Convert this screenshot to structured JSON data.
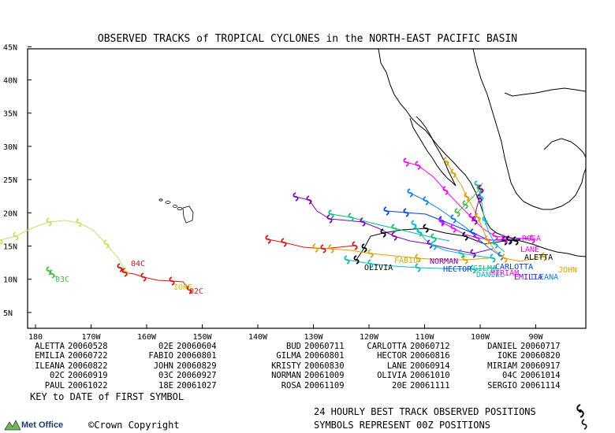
{
  "title": "OBSERVED TRACKS of TROPICAL CYCLONES in the NORTH-EAST PACIFIC BASIN",
  "axes": {
    "lat_labels": [
      "45N",
      "40N",
      "35N",
      "30N",
      "25N",
      "20N",
      "15N",
      "10N",
      "5N"
    ],
    "lon_labels": [
      "180",
      "170W",
      "160W",
      "150W",
      "140W",
      "130W",
      "120W",
      "110W",
      "100W",
      "90W"
    ]
  },
  "legend": [
    [
      {
        "name": "ALETTA",
        "date": "20060528"
      },
      {
        "name": "02E",
        "date": "20060604"
      },
      {
        "name": "BUD",
        "date": "20060711"
      },
      {
        "name": "CARLOTTA",
        "date": "20060712"
      },
      {
        "name": "DANIEL",
        "date": "20060717"
      }
    ],
    [
      {
        "name": "EMILIA",
        "date": "20060722"
      },
      {
        "name": "FABIO",
        "date": "20060801"
      },
      {
        "name": "GILMA",
        "date": "20060801"
      },
      {
        "name": "HECTOR",
        "date": "20060816"
      },
      {
        "name": "IOKE",
        "date": "20060820"
      }
    ],
    [
      {
        "name": "ILEANA",
        "date": "20060822"
      },
      {
        "name": "JOHN",
        "date": "20060829"
      },
      {
        "name": "KRISTY",
        "date": "20060830"
      },
      {
        "name": "LANE",
        "date": "20060914"
      },
      {
        "name": "MIRIAM",
        "date": "20060917"
      }
    ],
    [
      {
        "name": "02C",
        "date": "20060919"
      },
      {
        "name": "03C",
        "date": "20060927"
      },
      {
        "name": "NORMAN",
        "date": "20061009"
      },
      {
        "name": "OLIVIA",
        "date": "20061010"
      },
      {
        "name": "04C",
        "date": "20061014"
      }
    ],
    [
      {
        "name": "PAUL",
        "date": "20061022"
      },
      {
        "name": "18E",
        "date": "20061027"
      },
      {
        "name": "ROSA",
        "date": "20061109"
      },
      {
        "name": "20E",
        "date": "20061111"
      },
      {
        "name": "SERGIO",
        "date": "20061114"
      }
    ]
  ],
  "key_text": "KEY to DATE of FIRST SYMBOL",
  "best_track_text": "24 HOURLY BEST TRACK OBSERVED POSITIONS",
  "symbols_text": "SYMBOLS REPRESENT 00Z POSITIONS",
  "logo_text": "Met Office",
  "copyright_text": "Crown Copyright",
  "storm_labels": [
    {
      "text": "04C",
      "color": "#e01010"
    },
    {
      "text": "03C",
      "color": "#40c040"
    },
    {
      "text": "IOKE",
      "color": "#c8c800"
    },
    {
      "text": "02C",
      "color": "#e01010"
    },
    {
      "text": "OLIVIA",
      "color": "#000000"
    },
    {
      "text": "FABIO",
      "color": "#e0a000"
    },
    {
      "text": "NORMAN",
      "color": "#8000c0"
    },
    {
      "text": "HECTOR",
      "color": "#0040ff"
    },
    {
      "text": "DANIEL",
      "color": "#00c0c0"
    },
    {
      "text": "MIRIAM",
      "color": "#ff00ff"
    },
    {
      "text": "EMILIA",
      "color": "#8000c0"
    },
    {
      "text": "ILEANA",
      "color": "#0080ff"
    },
    {
      "text": "JOHN",
      "color": "#e0a000"
    },
    {
      "text": "LANE",
      "color": "#ff00ff"
    },
    {
      "text": "ALETTA",
      "color": "#000000"
    },
    {
      "text": "CARLOTTA",
      "color": "#0040ff"
    },
    {
      "text": "GILMA",
      "color": "#00c080"
    },
    {
      "text": "ROSA",
      "color": "#ff00ff"
    }
  ]
}
